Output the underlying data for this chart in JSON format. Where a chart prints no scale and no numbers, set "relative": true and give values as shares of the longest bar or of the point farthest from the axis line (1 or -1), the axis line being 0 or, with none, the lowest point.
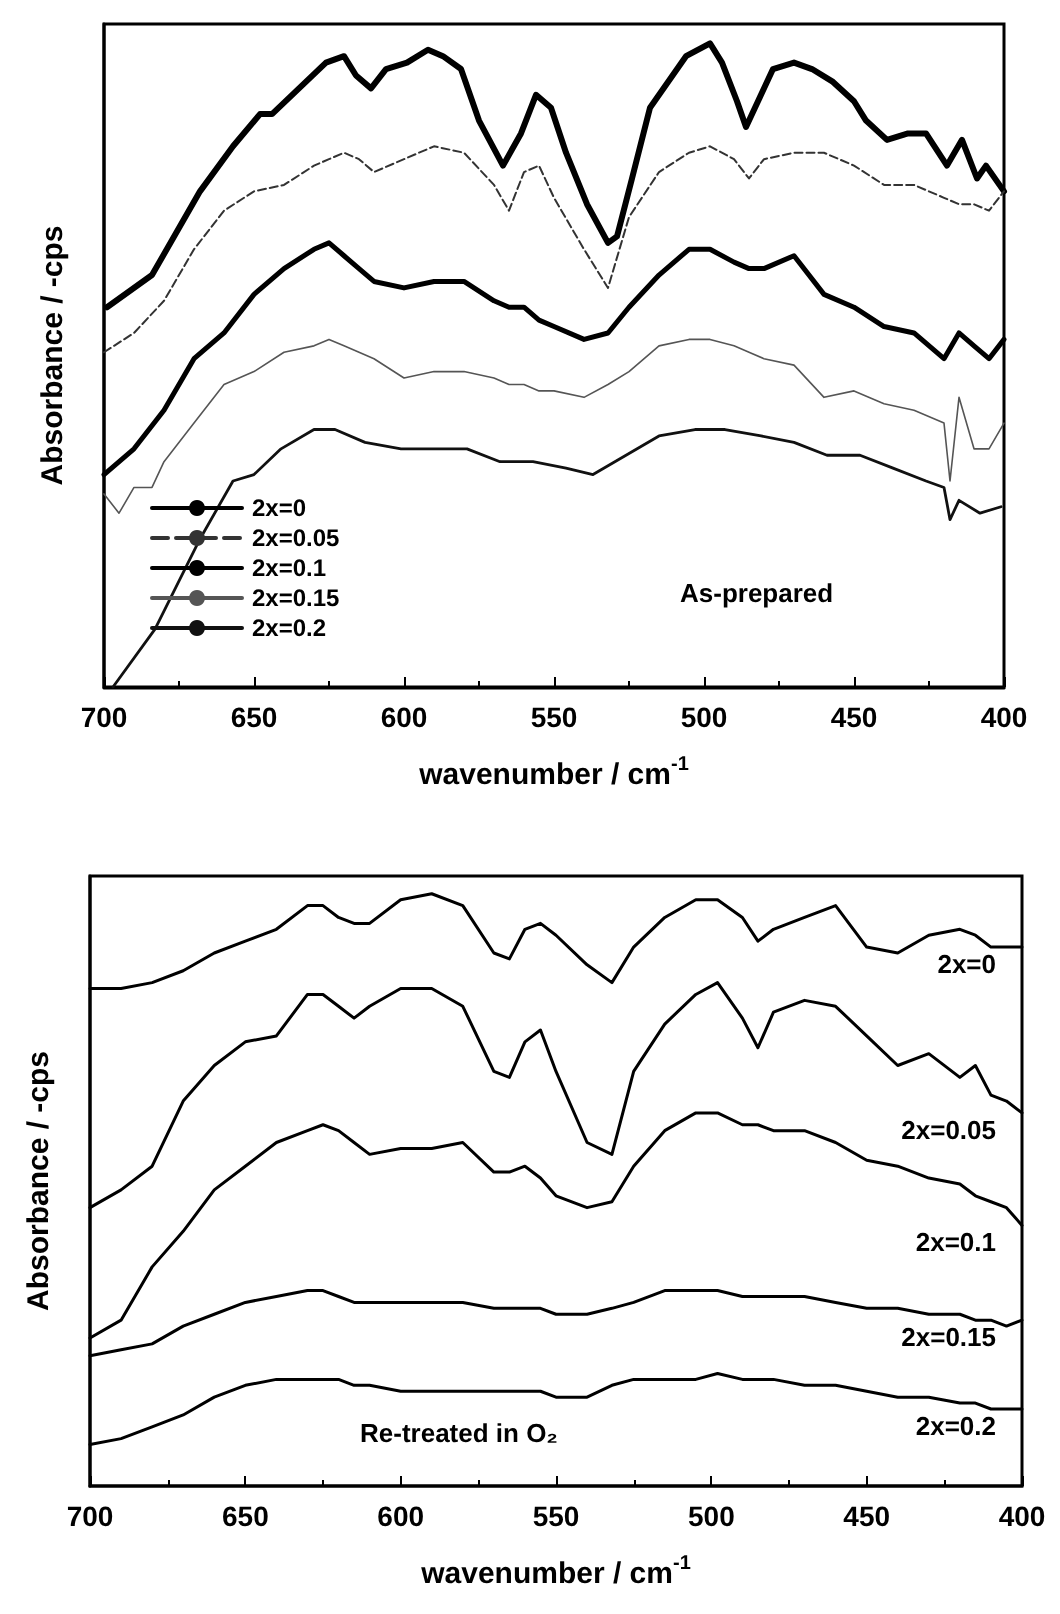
{
  "chart_data": [
    {
      "type": "line",
      "relative": true,
      "xlabel": "wavenumber / cm$^{-1}$",
      "ylabel": "Absorbance / -cps",
      "xlim": [
        700,
        400
      ],
      "xticks": [
        700,
        650,
        600,
        550,
        500,
        450,
        400
      ],
      "legend": "bottom left",
      "grid": false,
      "marker": "none",
      "annotations": [
        "As-prepared"
      ],
      "series": [
        {
          "name": "2x=0",
          "color": "#000000",
          "x": [
            699,
            684,
            668,
            657,
            648,
            644,
            635,
            626,
            620,
            616,
            611,
            606,
            599,
            592,
            587,
            581,
            575,
            567,
            561,
            556,
            551,
            546,
            539,
            532,
            529,
            524,
            518,
            512,
            506,
            498,
            494,
            489,
            486,
            482,
            477,
            470,
            464,
            457,
            450,
            446,
            439,
            432,
            426,
            419,
            414,
            409,
            406,
            400
          ],
          "values": [
            0.59,
            0.64,
            0.77,
            0.84,
            0.89,
            0.89,
            0.93,
            0.97,
            0.98,
            0.95,
            0.93,
            0.96,
            0.97,
            0.99,
            0.98,
            0.96,
            0.88,
            0.81,
            0.86,
            0.92,
            0.9,
            0.83,
            0.75,
            0.69,
            0.7,
            0.79,
            0.9,
            0.94,
            0.98,
            1.0,
            0.97,
            0.91,
            0.87,
            0.91,
            0.96,
            0.97,
            0.96,
            0.94,
            0.91,
            0.88,
            0.85,
            0.86,
            0.86,
            0.81,
            0.85,
            0.79,
            0.81,
            0.77
          ]
        },
        {
          "name": "2x=0.05",
          "color": "#333333",
          "line_style": "dashed",
          "x": [
            700,
            690,
            680,
            670,
            660,
            650,
            640,
            630,
            625,
            620,
            615,
            610,
            600,
            590,
            580,
            570,
            565,
            560,
            555,
            550,
            540,
            532,
            525,
            515,
            505,
            498,
            490,
            485,
            480,
            470,
            460,
            450,
            440,
            430,
            420,
            415,
            410,
            405,
            400
          ],
          "values": [
            0.52,
            0.55,
            0.6,
            0.68,
            0.74,
            0.77,
            0.78,
            0.81,
            0.82,
            0.83,
            0.82,
            0.8,
            0.82,
            0.84,
            0.83,
            0.78,
            0.74,
            0.8,
            0.81,
            0.76,
            0.68,
            0.62,
            0.73,
            0.8,
            0.83,
            0.84,
            0.82,
            0.79,
            0.82,
            0.83,
            0.83,
            0.81,
            0.78,
            0.78,
            0.76,
            0.75,
            0.75,
            0.74,
            0.77
          ]
        },
        {
          "name": "2x=0.1",
          "color": "#000000",
          "x": [
            700,
            690,
            680,
            670,
            660,
            650,
            640,
            630,
            625,
            620,
            615,
            610,
            600,
            590,
            580,
            570,
            565,
            560,
            555,
            550,
            540,
            532,
            525,
            515,
            505,
            498,
            490,
            485,
            480,
            470,
            460,
            450,
            440,
            430,
            420,
            415,
            410,
            405,
            400
          ],
          "values": [
            0.33,
            0.37,
            0.43,
            0.51,
            0.55,
            0.61,
            0.65,
            0.68,
            0.69,
            0.67,
            0.65,
            0.63,
            0.62,
            0.63,
            0.63,
            0.6,
            0.59,
            0.59,
            0.57,
            0.56,
            0.54,
            0.55,
            0.59,
            0.64,
            0.68,
            0.68,
            0.66,
            0.65,
            0.65,
            0.67,
            0.61,
            0.59,
            0.56,
            0.55,
            0.51,
            0.55,
            0.53,
            0.51,
            0.54
          ]
        },
        {
          "name": "2x=0.15",
          "color": "#555555",
          "x": [
            700,
            695,
            690,
            684,
            680,
            670,
            660,
            650,
            640,
            630,
            625,
            620,
            615,
            610,
            600,
            590,
            580,
            570,
            565,
            560,
            555,
            550,
            540,
            532,
            525,
            515,
            505,
            498,
            490,
            485,
            480,
            470,
            460,
            450,
            440,
            430,
            420,
            418,
            415,
            410,
            405,
            400
          ],
          "values": [
            0.3,
            0.27,
            0.31,
            0.31,
            0.35,
            0.41,
            0.47,
            0.49,
            0.52,
            0.53,
            0.54,
            0.53,
            0.52,
            0.51,
            0.48,
            0.49,
            0.49,
            0.48,
            0.47,
            0.47,
            0.46,
            0.46,
            0.45,
            0.47,
            0.49,
            0.53,
            0.54,
            0.54,
            0.53,
            0.52,
            0.51,
            0.5,
            0.45,
            0.46,
            0.44,
            0.43,
            0.41,
            0.32,
            0.45,
            0.37,
            0.37,
            0.41
          ]
        },
        {
          "name": "2x=0.2",
          "color": "#111111",
          "x": [
            697,
            683,
            668,
            657,
            650,
            641,
            630,
            623,
            613,
            601,
            590,
            579,
            568,
            557,
            546,
            537,
            526,
            515,
            503,
            493,
            481,
            470,
            459,
            448,
            437,
            426,
            420,
            418,
            415,
            408,
            401
          ],
          "values": [
            0,
            0.09,
            0.23,
            0.32,
            0.33,
            0.37,
            0.4,
            0.4,
            0.38,
            0.37,
            0.37,
            0.37,
            0.35,
            0.35,
            0.34,
            0.33,
            0.36,
            0.39,
            0.4,
            0.4,
            0.39,
            0.38,
            0.36,
            0.36,
            0.34,
            0.32,
            0.31,
            0.26,
            0.29,
            0.27,
            0.28
          ]
        }
      ]
    },
    {
      "type": "line",
      "relative": true,
      "xlabel": "wavenumber / cm$^{-1}$",
      "ylabel": "Absorbance / -cps",
      "xlim": [
        700,
        400
      ],
      "xticks": [
        700,
        650,
        600,
        550,
        500,
        450,
        400
      ],
      "legend": false,
      "grid": false,
      "marker": "none",
      "annotations": [
        "Re-treated in O₂"
      ],
      "x": [
        700,
        690,
        680,
        670,
        660,
        650,
        640,
        630,
        625,
        620,
        615,
        610,
        600,
        590,
        580,
        570,
        565,
        560,
        555,
        550,
        540,
        532,
        525,
        515,
        505,
        498,
        490,
        485,
        480,
        470,
        460,
        450,
        440,
        430,
        420,
        415,
        410,
        405,
        400
      ],
      "series": [
        {
          "name": "2x=0",
          "color": "#000000",
          "values": [
            0.84,
            0.84,
            0.85,
            0.87,
            0.9,
            0.92,
            0.94,
            0.98,
            0.98,
            0.96,
            0.95,
            0.95,
            0.99,
            1.0,
            0.98,
            0.9,
            0.89,
            0.94,
            0.95,
            0.93,
            0.88,
            0.85,
            0.91,
            0.96,
            0.99,
            0.99,
            0.96,
            0.92,
            0.94,
            0.96,
            0.98,
            0.91,
            0.9,
            0.93,
            0.94,
            0.93,
            0.91,
            0.91,
            0.91
          ]
        },
        {
          "name": "2x=0.05",
          "color": "#000000",
          "values": [
            0.47,
            0.5,
            0.54,
            0.65,
            0.71,
            0.75,
            0.76,
            0.83,
            0.83,
            0.81,
            0.79,
            0.81,
            0.84,
            0.84,
            0.81,
            0.7,
            0.69,
            0.75,
            0.77,
            0.7,
            0.58,
            0.56,
            0.7,
            0.78,
            0.83,
            0.85,
            0.79,
            0.74,
            0.8,
            0.82,
            0.81,
            0.76,
            0.71,
            0.73,
            0.69,
            0.71,
            0.66,
            0.65,
            0.63
          ]
        },
        {
          "name": "2x=0.1",
          "color": "#000000",
          "values": [
            0.25,
            0.28,
            0.37,
            0.43,
            0.5,
            0.54,
            0.58,
            0.6,
            0.61,
            0.6,
            0.58,
            0.56,
            0.57,
            0.57,
            0.58,
            0.53,
            0.53,
            0.54,
            0.52,
            0.49,
            0.47,
            0.48,
            0.54,
            0.6,
            0.63,
            0.63,
            0.61,
            0.61,
            0.6,
            0.6,
            0.58,
            0.55,
            0.54,
            0.52,
            0.51,
            0.49,
            0.48,
            0.47,
            0.44
          ]
        },
        {
          "name": "2x=0.15",
          "color": "#000000",
          "values": [
            0.22,
            0.23,
            0.24,
            0.27,
            0.29,
            0.31,
            0.32,
            0.33,
            0.33,
            0.32,
            0.31,
            0.31,
            0.31,
            0.31,
            0.31,
            0.3,
            0.3,
            0.3,
            0.3,
            0.29,
            0.29,
            0.3,
            0.31,
            0.33,
            0.33,
            0.33,
            0.32,
            0.32,
            0.32,
            0.32,
            0.31,
            0.3,
            0.3,
            0.29,
            0.29,
            0.28,
            0.28,
            0.27,
            0.28
          ]
        },
        {
          "name": "2x=0.2",
          "color": "#000000",
          "values": [
            0.07,
            0.08,
            0.1,
            0.12,
            0.15,
            0.17,
            0.18,
            0.18,
            0.18,
            0.18,
            0.17,
            0.17,
            0.16,
            0.16,
            0.16,
            0.16,
            0.16,
            0.16,
            0.16,
            0.15,
            0.15,
            0.17,
            0.18,
            0.18,
            0.18,
            0.19,
            0.18,
            0.18,
            0.18,
            0.17,
            0.17,
            0.16,
            0.15,
            0.15,
            0.14,
            0.14,
            0.13,
            0.13,
            0.13
          ]
        }
      ]
    }
  ]
}
